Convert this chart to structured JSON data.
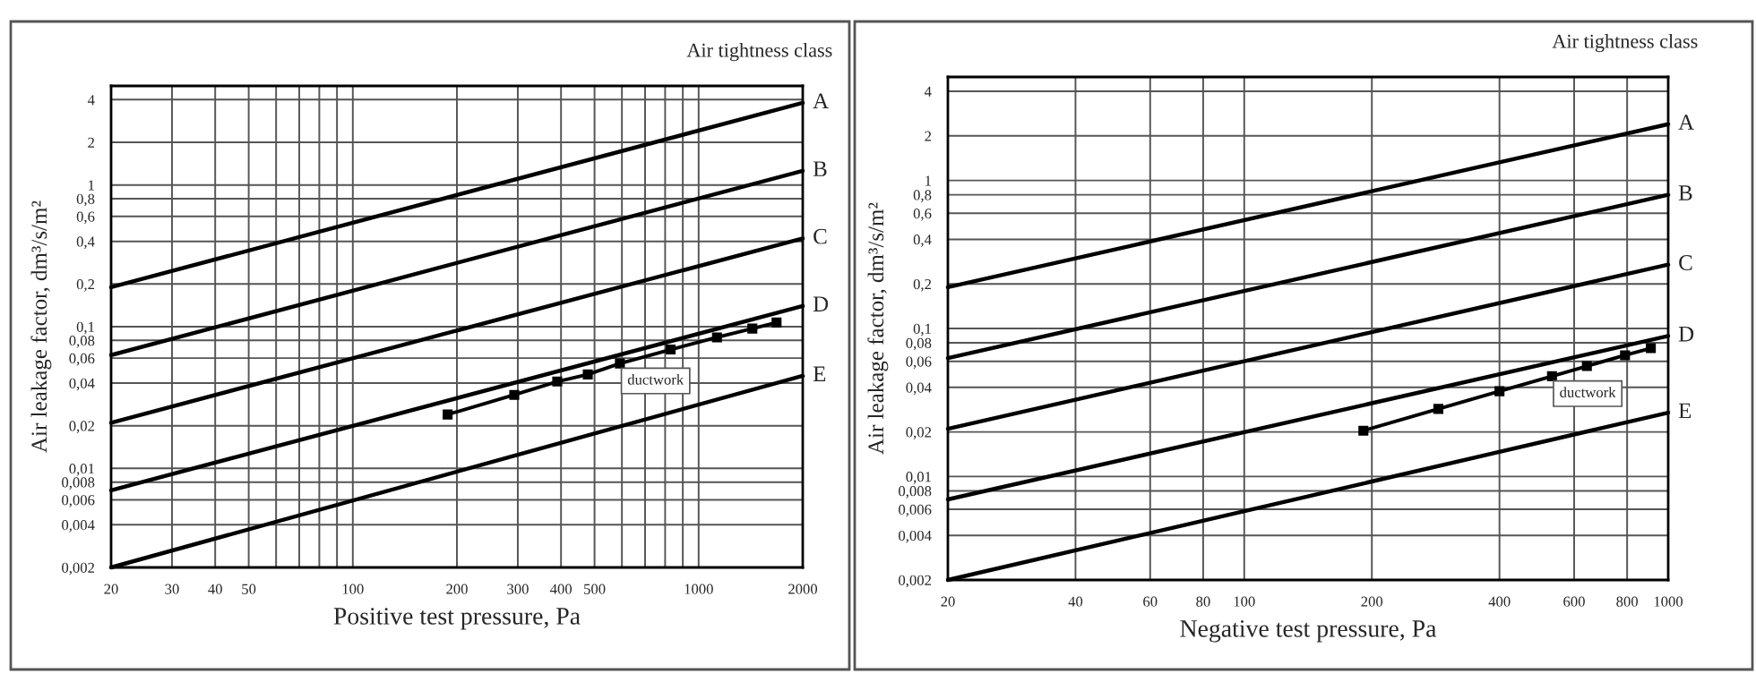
{
  "chart_data": [
    {
      "type": "line",
      "xlabel": "Positive test pressure, Pa",
      "ylabel": "Air leakage factor, dm³/s/m²",
      "annotations": [
        "Air tightness class"
      ],
      "log": "xy",
      "grid": true,
      "line_style": "solid",
      "xlim": [
        20,
        2000
      ],
      "ylim": [
        0.002,
        5
      ],
      "xticks": [
        20,
        30,
        40,
        50,
        {
          "value": 60,
          "label": null
        },
        {
          "value": 70,
          "label": null
        },
        {
          "value": 80,
          "label": null
        },
        {
          "value": 90,
          "label": null
        },
        100,
        200,
        300,
        400,
        500,
        {
          "value": 600,
          "label": null
        },
        {
          "value": 700,
          "label": null
        },
        {
          "value": 800,
          "label": null
        },
        {
          "value": 900,
          "label": null
        },
        1000,
        2000
      ],
      "yticks": [
        {
          "value": 0.002,
          "label": "0,002"
        },
        {
          "value": 0.004,
          "label": "0,004"
        },
        {
          "value": 0.006,
          "label": "0,006"
        },
        {
          "value": 0.008,
          "label": "0,008"
        },
        {
          "value": 0.01,
          "label": "0,01"
        },
        {
          "value": 0.02,
          "label": "0,02"
        },
        {
          "value": 0.04,
          "label": "0,04"
        },
        {
          "value": 0.06,
          "label": "0,06"
        },
        {
          "value": 0.08,
          "label": "0,08"
        },
        {
          "value": 0.1,
          "label": "0,1"
        },
        {
          "value": 0.2,
          "label": "0,2"
        },
        {
          "value": 0.4,
          "label": "0,4"
        },
        {
          "value": 0.6,
          "label": "0,6"
        },
        {
          "value": 0.8,
          "label": "0,8"
        },
        1,
        2,
        4
      ],
      "series": [
        {
          "name": "A",
          "color": "#000000",
          "marker": "none",
          "x": [
            20,
            2000
          ],
          "values": [
            0.19,
            3.8
          ]
        },
        {
          "name": "B",
          "color": "#000000",
          "marker": "none",
          "x": [
            20,
            2000
          ],
          "values": [
            0.063,
            1.26
          ]
        },
        {
          "name": "C",
          "color": "#000000",
          "marker": "none",
          "x": [
            20,
            2000
          ],
          "values": [
            0.021,
            0.42
          ]
        },
        {
          "name": "D",
          "color": "#000000",
          "marker": "none",
          "x": [
            20,
            2000
          ],
          "values": [
            0.007,
            0.14
          ]
        },
        {
          "name": "E",
          "color": "#000000",
          "marker": "none",
          "x": [
            20,
            2000
          ],
          "values": [
            0.002,
            0.045
          ]
        },
        {
          "name": "ductwork",
          "color": "#000000",
          "marker": "square",
          "x": [
            188,
            293,
            390,
            478,
            592,
            830,
            1130,
            1430,
            1680
          ],
          "values": [
            0.024,
            0.033,
            0.041,
            0.046,
            0.055,
            0.069,
            0.084,
            0.097,
            0.107
          ]
        }
      ]
    },
    {
      "type": "line",
      "xlabel": "Negative test pressure, Pa",
      "ylabel": "Air leakage factor, dm³/s/m²",
      "annotations": [
        "Air tightness class"
      ],
      "log": "xy",
      "grid": true,
      "line_style": "solid",
      "xlim": [
        20,
        1000
      ],
      "ylim": [
        0.002,
        5
      ],
      "xticks": [
        20,
        40,
        60,
        80,
        100,
        200,
        400,
        600,
        800,
        1000
      ],
      "yticks": [
        {
          "value": 0.002,
          "label": "0,002"
        },
        {
          "value": 0.004,
          "label": "0,004"
        },
        {
          "value": 0.006,
          "label": "0,006"
        },
        {
          "value": 0.008,
          "label": "0,008"
        },
        {
          "value": 0.01,
          "label": "0,01"
        },
        {
          "value": 0.02,
          "label": "0,02"
        },
        {
          "value": 0.04,
          "label": "0,04"
        },
        {
          "value": 0.06,
          "label": "0,06"
        },
        {
          "value": 0.08,
          "label": "0,08"
        },
        {
          "value": 0.1,
          "label": "0,1"
        },
        {
          "value": 0.2,
          "label": "0,2"
        },
        {
          "value": 0.4,
          "label": "0,4"
        },
        {
          "value": 0.6,
          "label": "0,6"
        },
        {
          "value": 0.8,
          "label": "0,8"
        },
        1,
        2,
        4
      ],
      "series": [
        {
          "name": "A",
          "color": "#000000",
          "marker": "none",
          "x": [
            20,
            1000
          ],
          "values": [
            0.19,
            2.4
          ]
        },
        {
          "name": "B",
          "color": "#000000",
          "marker": "none",
          "x": [
            20,
            1000
          ],
          "values": [
            0.063,
            0.8
          ]
        },
        {
          "name": "C",
          "color": "#000000",
          "marker": "none",
          "x": [
            20,
            1000
          ],
          "values": [
            0.021,
            0.27
          ]
        },
        {
          "name": "D",
          "color": "#000000",
          "marker": "none",
          "x": [
            20,
            1000
          ],
          "values": [
            0.007,
            0.089
          ]
        },
        {
          "name": "E",
          "color": "#000000",
          "marker": "none",
          "x": [
            20,
            1000
          ],
          "values": [
            0.002,
            0.027
          ]
        },
        {
          "name": "ductwork",
          "color": "#000000",
          "marker": "square",
          "x": [
            191,
            287,
            400,
            532,
            643,
            791,
            910
          ],
          "values": [
            0.0204,
            0.0286,
            0.0377,
            0.0476,
            0.0557,
            0.0659,
            0.0736
          ]
        }
      ]
    }
  ]
}
